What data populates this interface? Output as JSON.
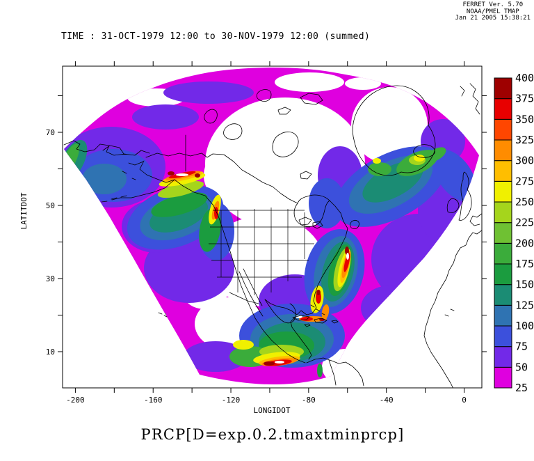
{
  "stamp": {
    "line1": "FERRET Ver. 5.70",
    "line2": "NOAA/PMEL TMAP",
    "line3": "Jan 21 2005 15:38:21"
  },
  "chart_data": {
    "type": "heatmap",
    "title": "PRCP[D=exp.0.2.tmaxtminprcp]",
    "time_label": "TIME : 31-OCT-1979 12:00 to 30-NOV-1979 12:00 (summed)",
    "xlabel": "LONGIDOT",
    "ylabel": "LATITDOT",
    "xlim": [
      -206,
      9
    ],
    "ylim": [
      0,
      88
    ],
    "x_ticks_labeled": [
      "-200",
      "-160",
      "-120",
      "-80",
      "-40",
      "0"
    ],
    "x_ticks_all": [
      -200,
      -180,
      -160,
      -140,
      -120,
      -100,
      -80,
      -60,
      -40,
      -20,
      0
    ],
    "y_ticks_labeled": [
      "70",
      "50",
      "30",
      "10"
    ],
    "y_ticks_all": [
      10,
      20,
      30,
      40,
      50,
      60,
      70,
      80
    ],
    "legend_position": "right",
    "colorbar": {
      "levels": [
        25,
        50,
        75,
        100,
        125,
        150,
        175,
        200,
        225,
        250,
        275,
        300,
        325,
        350,
        375,
        400
      ],
      "colors": [
        "#DF00DF",
        "#7229E8",
        "#3C50DC",
        "#2F73B2",
        "#1B8C74",
        "#1B9C3F",
        "#3BAC3B",
        "#6FC133",
        "#A5D51C",
        "#F0F000",
        "#FFBE00",
        "#FF8C00",
        "#FF4600",
        "#E80000",
        "#9E0000"
      ]
    }
  }
}
